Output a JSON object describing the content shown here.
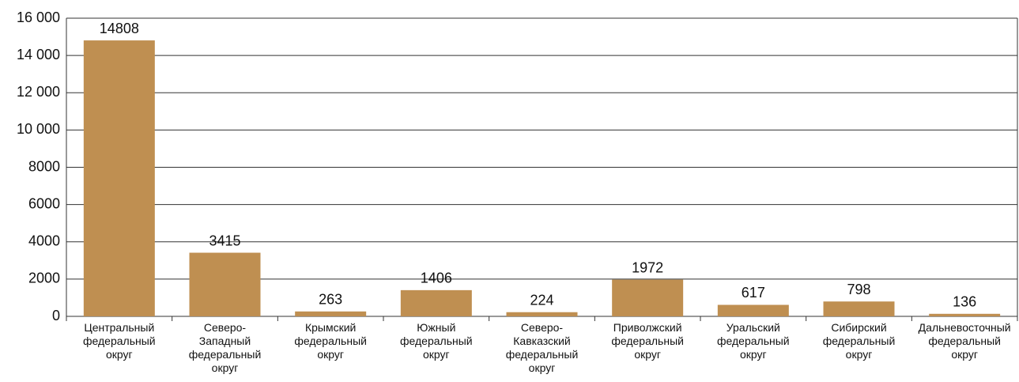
{
  "chart_data": {
    "type": "bar",
    "categories": [
      "Центральный\nфедеральный\nокруг",
      "Северо-\nЗападный\nфедеральный\nокруг",
      "Крымский\nфедеральный\nокруг",
      "Южный\nфедеральный\nокруг",
      "Северо-\nКавказский\nфедеральный\nокруг",
      "Приволжский\nфедеральный\nокруг",
      "Уральский\nфедеральный\nокруг",
      "Сибирский\nфедеральный\nокруг",
      "Дальневосточный\nфедеральный\nокруг"
    ],
    "values": [
      14808,
      3415,
      263,
      1406,
      224,
      1972,
      617,
      798,
      136
    ],
    "color": "#bf8f51",
    "ylim": [
      0,
      16000
    ],
    "yticks": [
      0,
      2000,
      4000,
      6000,
      8000,
      {
        "value": 10000,
        "label": "10 000"
      },
      {
        "value": 12000,
        "label": "12 000"
      },
      {
        "value": 14000,
        "label": "14 000"
      },
      {
        "value": 16000,
        "label": "16 000"
      }
    ],
    "grid": true
  }
}
